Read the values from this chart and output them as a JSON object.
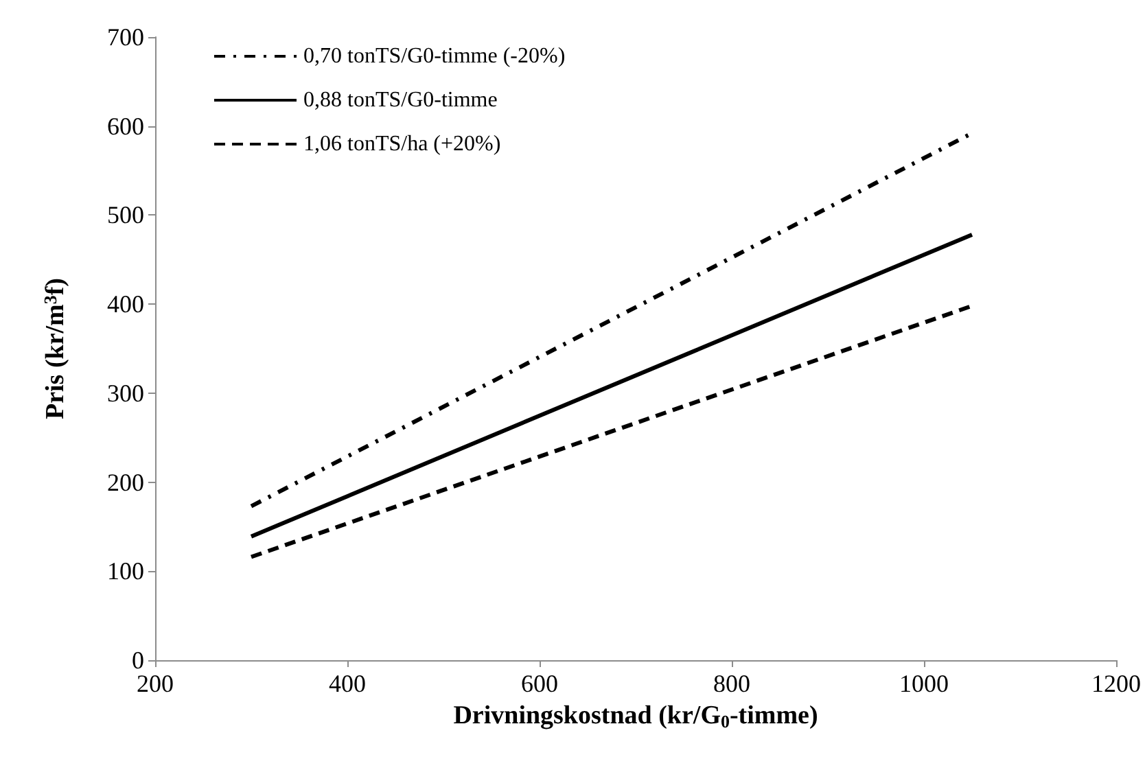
{
  "chart_data": {
    "type": "line",
    "xlabel": "Drivningskostnad (kr/G$_{0}$-timme)",
    "ylabel": "Pris (kr/m$^{3}$f)",
    "xlim": [
      200,
      1200
    ],
    "xticks": [
      200,
      400,
      600,
      800,
      1000,
      1200
    ],
    "ylim": [
      0,
      700
    ],
    "yticks": [
      0,
      100,
      200,
      300,
      400,
      500,
      600,
      700
    ],
    "grid": false,
    "x": [
      300,
      1050
    ],
    "legend": "top left",
    "marker": "none",
    "series": [
      {
        "name": "0,70 tonTS/G0-timme (-20%)",
        "color": "#000000",
        "line_style": "dashdot",
        "values": [
          173,
          592
        ]
      },
      {
        "name": "0,88 tonTS/G0-timme",
        "color": "#000000",
        "line_style": "solid",
        "values": [
          139,
          478
        ]
      },
      {
        "name": "1,06 tonTS/ha (+20%)",
        "color": "#000000",
        "line_style": "dashed",
        "values": [
          116,
          398
        ]
      }
    ]
  }
}
